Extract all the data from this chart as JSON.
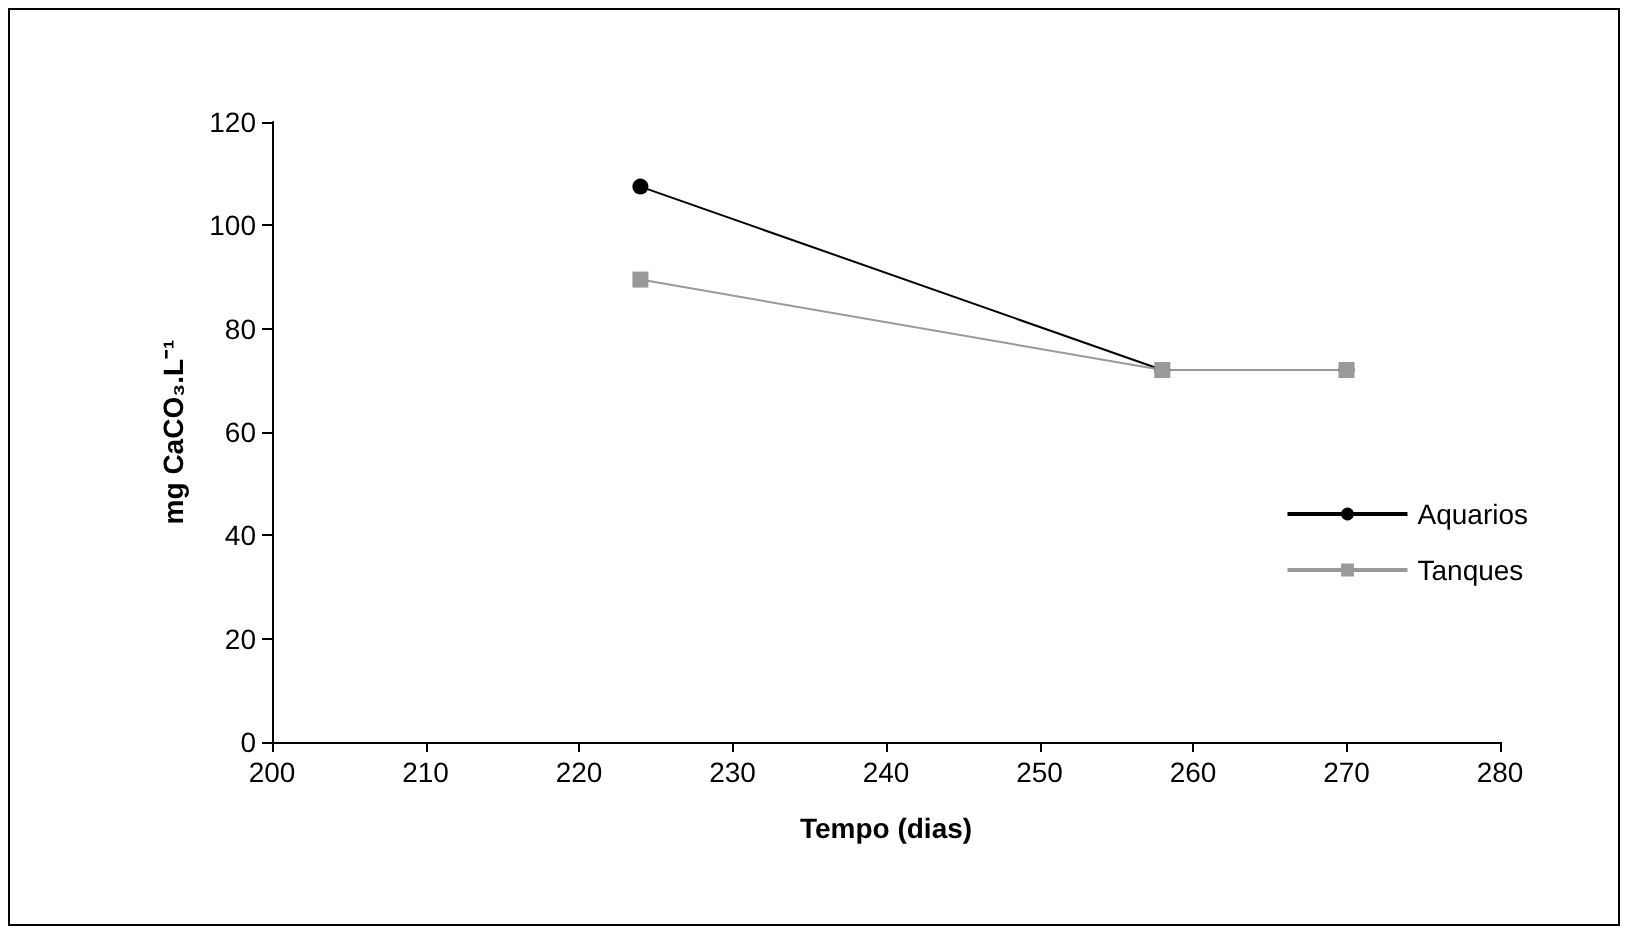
{
  "chart_data": {
    "type": "line",
    "xlabel": "Tempo (dias)",
    "ylabel": "mg CaCO₃.L⁻¹",
    "x": [
      224,
      258,
      270
    ],
    "series": [
      {
        "name": "Aquarios",
        "color": "#000000",
        "marker": "circle",
        "values": [
          107.5,
          72,
          72
        ]
      },
      {
        "name": "Tanques",
        "color": "#999999",
        "marker": "square",
        "values": [
          89.5,
          72,
          72
        ]
      }
    ],
    "xlim": [
      200,
      280
    ],
    "xticks": [
      200,
      210,
      220,
      230,
      240,
      250,
      260,
      270,
      280
    ],
    "ylim": [
      0,
      120
    ],
    "yticks": [
      0,
      20,
      40,
      60,
      80,
      100,
      120
    ],
    "grid": false,
    "legend": "right",
    "line_style": "solid"
  }
}
